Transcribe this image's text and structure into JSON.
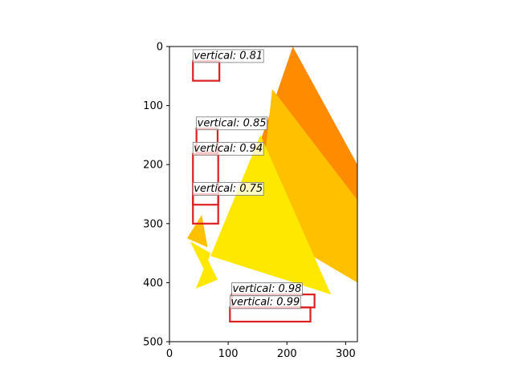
{
  "chart_data": {
    "type": "image-detections",
    "title": "",
    "xlabel": "",
    "ylabel": "",
    "xlim": [
      0,
      320
    ],
    "ylim": [
      500,
      0
    ],
    "y_inverted": true,
    "grid": false,
    "x_ticks": [
      0,
      100,
      200,
      300
    ],
    "y_ticks": [
      0,
      100,
      200,
      300,
      400,
      500
    ],
    "colors": {
      "box": "#dd1f1f",
      "yellow": "#ffe800",
      "light_orange": "#ffc000",
      "orange": "#ff8c00",
      "label_bg": "#ffffff"
    },
    "background_shapes": [
      {
        "name": "orange-triangle",
        "color": "orange",
        "points": [
          [
            210,
            0
          ],
          [
            320,
            200
          ],
          [
            320,
            350
          ],
          [
            155,
            160
          ]
        ]
      },
      {
        "name": "light-orange-triangle",
        "color": "light_orange",
        "points": [
          [
            175,
            72
          ],
          [
            320,
            260
          ],
          [
            320,
            400
          ],
          [
            150,
            300
          ]
        ]
      },
      {
        "name": "yellow-triangle",
        "color": "yellow",
        "points": [
          [
            155,
            150
          ],
          [
            275,
            420
          ],
          [
            70,
            355
          ]
        ]
      },
      {
        "name": "small-orange-triangle",
        "color": "light_orange",
        "points": [
          [
            55,
            285
          ],
          [
            65,
            340
          ],
          [
            30,
            325
          ]
        ]
      },
      {
        "name": "small-yellow-triangle-1",
        "color": "yellow",
        "points": [
          [
            35,
            330
          ],
          [
            70,
            350
          ],
          [
            60,
            380
          ]
        ]
      },
      {
        "name": "small-yellow-triangle-2",
        "color": "yellow",
        "points": [
          [
            65,
            360
          ],
          [
            82,
            395
          ],
          [
            45,
            410
          ]
        ]
      }
    ],
    "detections": [
      {
        "label": "vertical: 0.81",
        "x0": 40,
        "y0": 25,
        "x1": 85,
        "y1": 58
      },
      {
        "label": "vertical: 0.85",
        "x0": 46,
        "y0": 139,
        "x1": 82,
        "y1": 180
      },
      {
        "label": "vertical: 0.94",
        "x0": 40,
        "y0": 182,
        "x1": 83,
        "y1": 268
      },
      {
        "label": "vertical: 0.75",
        "x0": 40,
        "y0": 250,
        "x1": 83,
        "y1": 300
      },
      {
        "label": "vertical: 0.98",
        "x0": 106,
        "y0": 420,
        "x1": 247,
        "y1": 442
      },
      {
        "label": "vertical: 0.99",
        "x0": 103,
        "y0": 442,
        "x1": 240,
        "y1": 466
      }
    ]
  }
}
